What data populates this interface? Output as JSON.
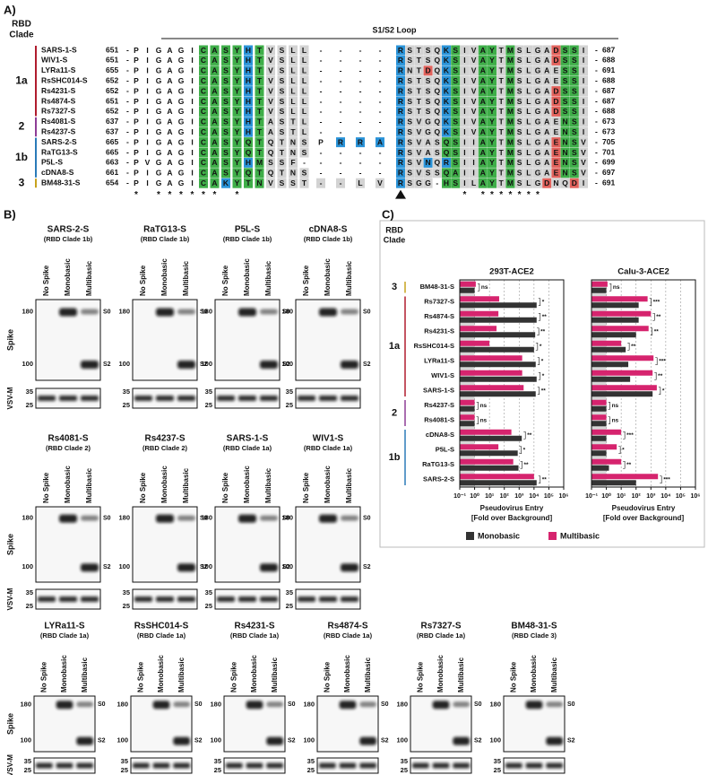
{
  "panel_a": {
    "label": "A)",
    "clade_header": [
      "RBD",
      "Clade"
    ],
    "loop_label": "S1/S2 Loop",
    "separator": "-",
    "clades": [
      {
        "label": "1a",
        "color": "#b01c2e",
        "rows": [
          {
            "name": "SARS-1-S",
            "start": 651,
            "seq": "PIGAGICASYHTVSLL----RSTSQKSIVAYTMSLGADSSI",
            "shade": "......GGGGBGgggg....BggggBGggGGgGggggRGGg",
            "end": 687
          },
          {
            "name": "WIV1-S",
            "start": 651,
            "seq": "PIGAGICASYHTVSLL----RSTSQKSIVAYTMSLGADSSI",
            "shade": "......GGGGBGgggg....BggggBGggGGgGggggRGGg",
            "end": 688
          },
          {
            "name": "LYRa11-S",
            "start": 655,
            "seq": "PIGAGICASYHTVSLL----RNTDQKSIVAYTMSLGAESSI",
            "shade": "......GGGGBGgggg....BggRgBGggGGgGgggggGGg",
            "end": 691
          },
          {
            "name": "RsSHC014-S",
            "start": 652,
            "seq": "PIGAGICASYHTVSLL----RSTSQKSIVAYTMSLGAESSI",
            "shade": "......GGGGBGgggg....BggggBGggGGgGgggggGGg",
            "end": 688
          },
          {
            "name": "Rs4231-S",
            "start": 652,
            "seq": "PIGAGICASYHTVSLL----RSTSQKSIVAYTMSLGADSSI",
            "shade": "......GGGGBGgggg....BggggBGggGGgGggggRGGg",
            "end": 687
          },
          {
            "name": "Rs4874-S",
            "start": 651,
            "seq": "PIGAGICASYHTVSLL----RSTSQKSIVAYTMSLGADSSI",
            "shade": "......GGGGBGgggg....BggggBGggGGgGggggRGGg",
            "end": 687
          },
          {
            "name": "Rs7327-S",
            "start": 652,
            "seq": "PIGAGICASYHTVSLL----RSTSQKSIVAYTMSLGADSSI",
            "shade": "......GGGGBGgggg....BggggBGggGGgGggggRGGg",
            "end": 688
          }
        ]
      },
      {
        "label": "2",
        "color": "#8e3d96",
        "rows": [
          {
            "name": "Rs4081-S",
            "start": 637,
            "seq": "PIGAGICASYHTASTL----RSVGQKSIVAYTMSLGAENSI",
            "shade": "......GGGGBGgggg....BggggBGggGGgGgggggGGg",
            "end": 673
          },
          {
            "name": "Rs4237-S",
            "start": 637,
            "seq": "PIGAGICASYHTASTL----RSVGQKSIVAYTMSLGAENSI",
            "shade": "......GGGGBGgggg....BggggBGggGGgGgggggGGg",
            "end": 673
          }
        ]
      },
      {
        "label": "1b",
        "color": "#2a7ab8",
        "rows": [
          {
            "name": "SARS-2-S",
            "start": 665,
            "seq": "PIGAGICASYQTQTNSPRRARSVASQSIIAYTMSLGAENSV",
            "shade": "......GGGGGGgggg.BBBBggggGGggGGgGggggRGGg",
            "end": 705
          },
          {
            "name": "RaTG13-S",
            "start": 665,
            "seq": "PIGAGICASYQTQTNS----RSVASQSIIAYTMSLGAENSV",
            "shade": "......GGGGGGgggg....BggggGGggGGgGggggRGGg",
            "end": 701
          },
          {
            "name": "P5L-S",
            "start": 663,
            "seq": "PVGAGICASYHMSSF-----RSVNQRSIIAYTMSLGAENSV",
            "shade": "......GGGGBGggg.....BggBgBGggGGgGggggRGGg",
            "end": 699
          },
          {
            "name": "cDNA8-S",
            "start": 661,
            "seq": "PIGAGICASYQTQTNS----RSVSSQAIIAYTMSLGAENSV",
            "shade": "......GGGGGGgggg....BggggGGggGGgGggggRGGg",
            "end": 697
          }
        ]
      },
      {
        "label": "3",
        "color": "#c7a21d",
        "rows": [
          {
            "name": "BM48-31-S",
            "start": 654,
            "seq": "PIGAGICAKYTNVSST--LVRSGG-HSILAYTMSLGDNQDI",
            "shade": "......GGBGGGggggggggBggg.GGggGGgGgggRggRg",
            "end": 691
          }
        ]
      }
    ],
    "conservation": "* ****** *                 * *******     "
  },
  "panel_b": {
    "label": "B)",
    "lanes": [
      "No Spike",
      "Monobasic",
      "Multibasic"
    ],
    "blot_labels": [
      "Spike",
      "VSV-M"
    ],
    "spike_markers": [
      180,
      100
    ],
    "vsvm_markers": [
      35,
      25
    ],
    "bands": [
      "S0",
      "S2"
    ],
    "rows": [
      [
        {
          "title": "SARS-2-S",
          "subtitle": "(RBD Clade 1b)",
          "color": "#2a7ab8"
        },
        {
          "title": "RaTG13-S",
          "subtitle": "(RBD Clade 1b)",
          "color": "#2a7ab8"
        },
        {
          "title": "P5L-S",
          "subtitle": "(RBD Clade 1b)",
          "color": "#2a7ab8"
        },
        {
          "title": "cDNA8-S",
          "subtitle": "(RBD Clade 1b)",
          "color": "#2a7ab8"
        }
      ],
      [
        {
          "title": "Rs4081-S",
          "subtitle": "(RBD Clade 2)",
          "color": "#8e3d96"
        },
        {
          "title": "Rs4237-S",
          "subtitle": "(RBD Clade 2)",
          "color": "#8e3d96"
        },
        {
          "title": "SARS-1-S",
          "subtitle": "(RBD Clade 1a)",
          "color": "#b01c2e"
        },
        {
          "title": "WIV1-S",
          "subtitle": "(RBD Clade 1a)",
          "color": "#b01c2e"
        }
      ],
      [
        {
          "title": "LYRa11-S",
          "subtitle": "(RBD Clade 1a)",
          "color": "#b01c2e"
        },
        {
          "title": "RsSHC014-S",
          "subtitle": "(RBD Clade 1a)",
          "color": "#b01c2e"
        },
        {
          "title": "Rs4231-S",
          "subtitle": "(RBD Clade 1a)",
          "color": "#b01c2e"
        },
        {
          "title": "Rs4874-S",
          "subtitle": "(RBD Clade 1a)",
          "color": "#b01c2e"
        },
        {
          "title": "Rs7327-S",
          "subtitle": "(RBD Clade 1a)",
          "color": "#b01c2e"
        },
        {
          "title": "BM48-31-S",
          "subtitle": "(RBD Clade 3)",
          "color": "#c7a21d"
        }
      ]
    ]
  },
  "panel_c": {
    "label": "C)",
    "clade_header": [
      "RBD",
      "Clade"
    ],
    "clades": [
      {
        "label": "3",
        "color": "#c7a21d"
      },
      {
        "label": "1a",
        "color": "#b01c2e"
      },
      {
        "label": "2",
        "color": "#8e3d96"
      },
      {
        "label": "1b",
        "color": "#2a7ab8"
      }
    ]
  },
  "chart_data": [
    {
      "type": "bar",
      "orientation": "horizontal",
      "title": "293T-ACE2",
      "categories": [
        "BM48-31-S",
        "Rs7327-S",
        "Rs4874-S",
        "Rs4231-S",
        "RsSHC014-S",
        "LYRa11-S",
        "WIV1-S",
        "SARS-1-S",
        "Rs4237-S",
        "Rs4081-S",
        "cDNA8-S",
        "P5L-S",
        "RaTG13-S",
        "SARS-2-S"
      ],
      "series": [
        {
          "name": "Monobasic",
          "color": "#333333",
          "values": [
            1,
            15000,
            15000,
            12000,
            10000,
            13000,
            15000,
            13000,
            1,
            1,
            1500,
            800,
            900,
            15000
          ]
        },
        {
          "name": "Multibasic",
          "color": "#d6246e",
          "values": [
            1.2,
            45,
            40,
            30,
            10,
            1600,
            1600,
            2000,
            1,
            1,
            300,
            40,
            400,
            10000
          ]
        }
      ],
      "annotations": [
        "ns",
        "*",
        "**",
        "**",
        "*",
        "*",
        "*",
        "**",
        "ns",
        "ns",
        "**",
        "*",
        "**",
        "**"
      ],
      "xlim": [
        0.1,
        1000000
      ],
      "xticks": [
        {
          "value": 0.1,
          "label": "10⁻¹"
        },
        {
          "value": 1,
          "label": "10⁰"
        },
        {
          "value": 10,
          "label": "10¹"
        },
        {
          "value": 100,
          "label": "10²"
        },
        {
          "value": 1000,
          "label": "10³"
        },
        {
          "value": 10000,
          "label": "10⁴"
        },
        {
          "value": 100000,
          "label": "10⁵"
        },
        {
          "value": 1000000,
          "label": "10⁶"
        }
      ],
      "log_x": true,
      "grid": true,
      "xlabel": "Pseudovirus Entry",
      "xlabel_sub": "[Fold over Background]"
    },
    {
      "type": "bar",
      "orientation": "horizontal",
      "title": "Calu-3-ACE2",
      "series": [
        {
          "color": "#333333",
          "values": [
            1,
            150,
            150,
            100,
            20,
            30,
            40,
            1300,
            1,
            1,
            1,
            1,
            1.5,
            100
          ]
        },
        {
          "color": "#d6246e",
          "values": [
            1.2,
            600,
            1000,
            700,
            10,
            1500,
            1300,
            2500,
            1,
            1,
            10,
            5,
            10,
            3000
          ]
        }
      ],
      "annotations": [
        "ns",
        "***",
        "**",
        "**",
        "**",
        "***",
        "**",
        "*",
        "ns",
        "ns",
        "***",
        "*",
        "**",
        "***"
      ],
      "xlim": [
        0.1,
        1000000
      ],
      "xticks": [
        {
          "value": 0.1,
          "label": "10⁻¹"
        },
        {
          "value": 1,
          "label": "10⁰"
        },
        {
          "value": 10,
          "label": "10¹"
        },
        {
          "value": 100,
          "label": "10²"
        },
        {
          "value": 1000,
          "label": "10³"
        },
        {
          "value": 10000,
          "label": "10⁴"
        },
        {
          "value": 100000,
          "label": "10⁵"
        },
        {
          "value": 1000000,
          "label": "10⁶"
        }
      ],
      "log_x": true,
      "grid": true,
      "xlabel": "Pseudovirus Entry",
      "xlabel_sub": "[Fold over Background]"
    }
  ]
}
